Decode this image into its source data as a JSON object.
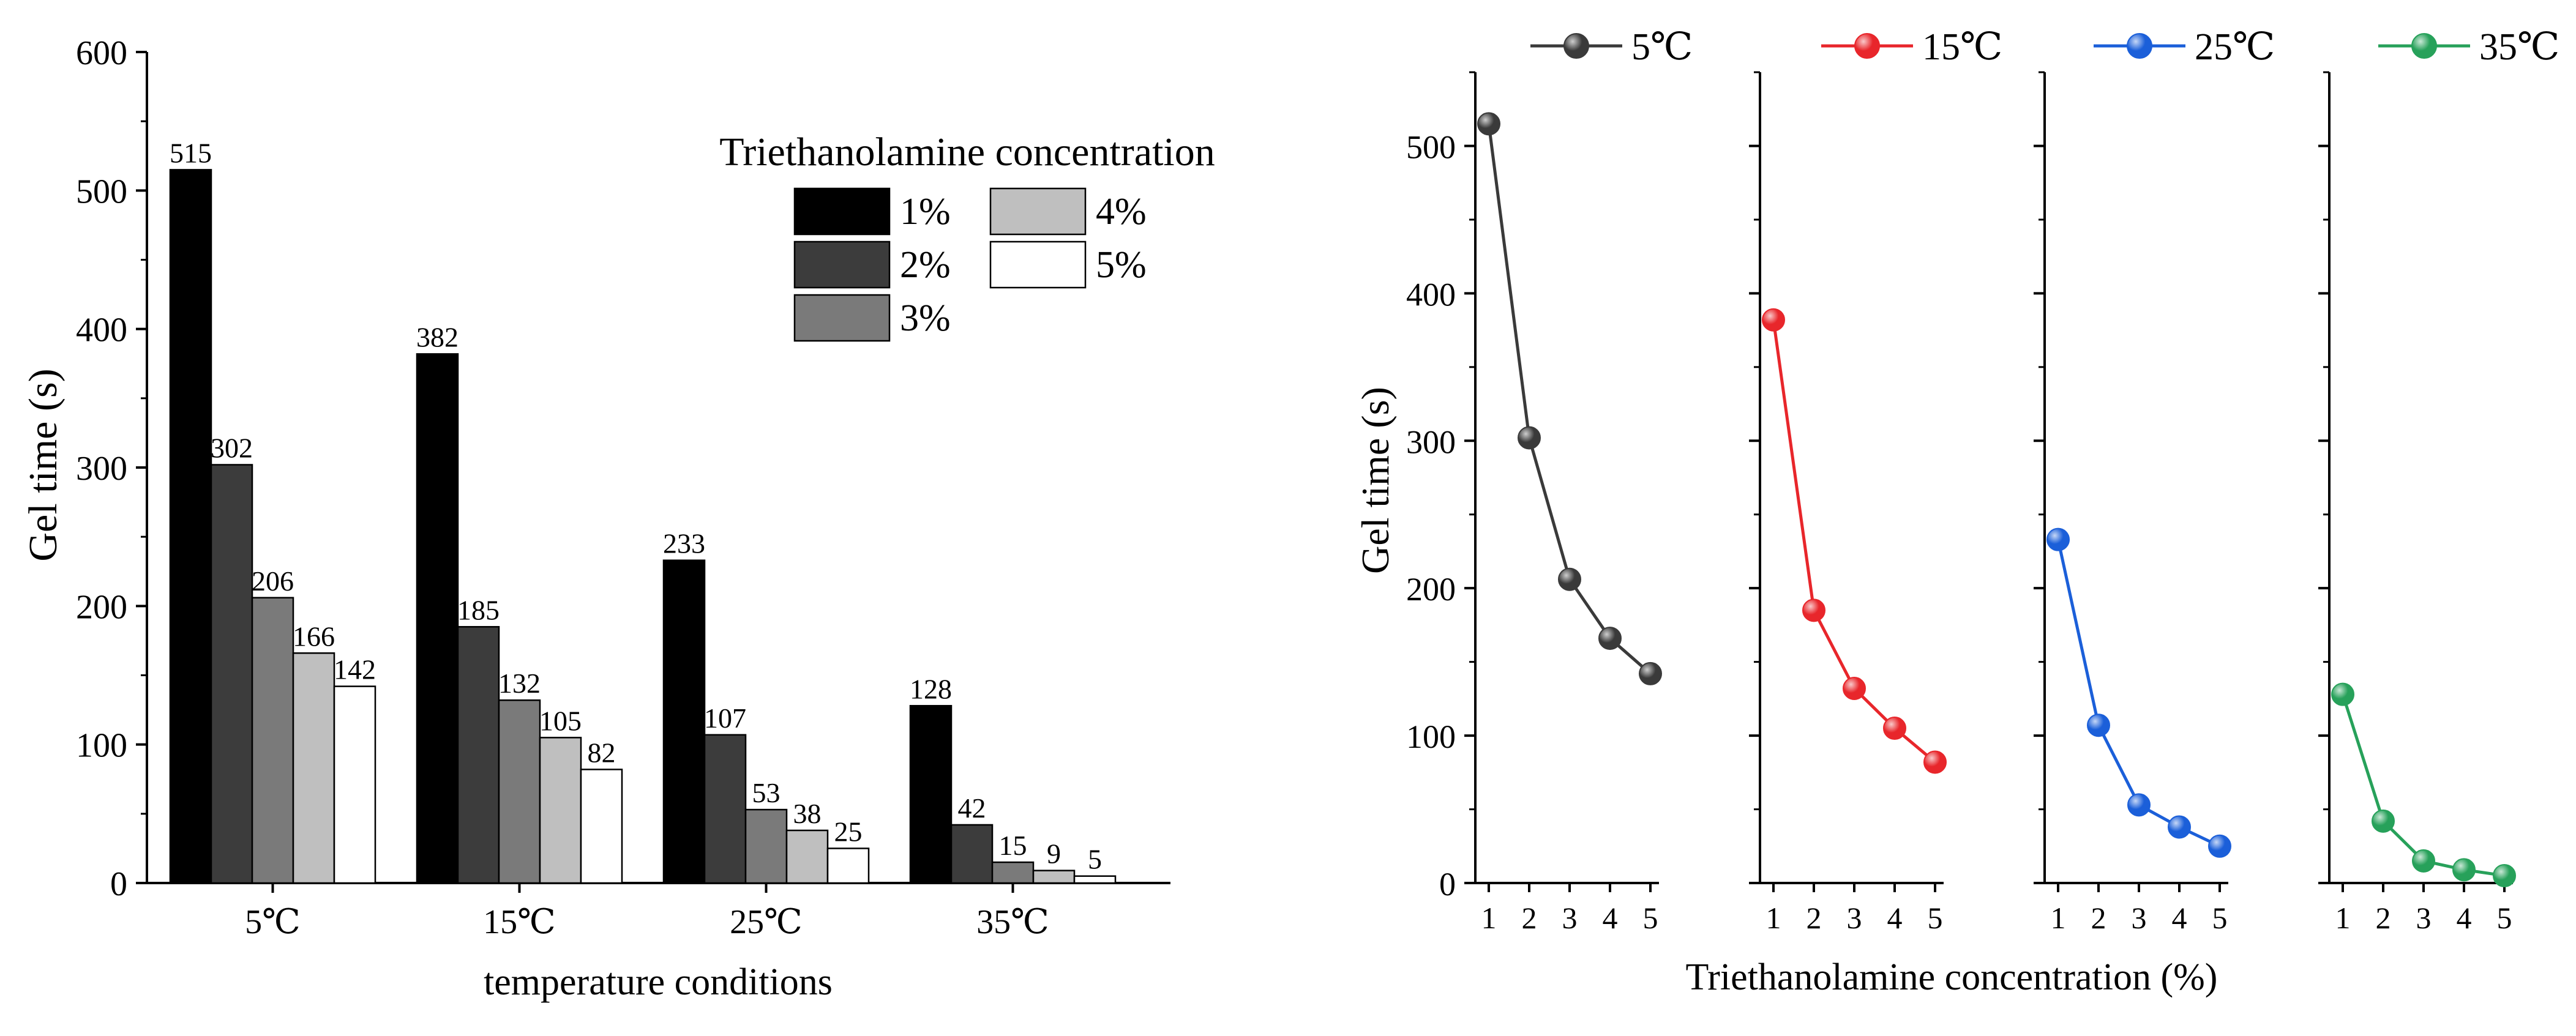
{
  "chart_data": [
    {
      "type": "bar",
      "title": "",
      "xlabel": "temperature conditions",
      "ylabel": "Gel time (s)",
      "ylim": [
        0,
        600
      ],
      "yticks": [
        0,
        100,
        200,
        300,
        400,
        500,
        600
      ],
      "categories": [
        "5℃",
        "15℃",
        "25℃",
        "35℃"
      ],
      "legend_title": "Triethanolamine concentration",
      "series": [
        {
          "name": "1%",
          "color": "#000000",
          "values": [
            515,
            382,
            233,
            128
          ]
        },
        {
          "name": "2%",
          "color": "#3c3c3c",
          "values": [
            302,
            185,
            107,
            42
          ]
        },
        {
          "name": "3%",
          "color": "#7a7a7a",
          "values": [
            206,
            132,
            53,
            15
          ]
        },
        {
          "name": "4%",
          "color": "#bfbfbf",
          "values": [
            166,
            105,
            38,
            9
          ]
        },
        {
          "name": "5%",
          "color": "#ffffff",
          "values": [
            142,
            82,
            25,
            5
          ]
        }
      ]
    },
    {
      "type": "line",
      "title": "",
      "xlabel": "Triethanolamine concentration (%)",
      "ylabel": "Gel time (s)",
      "ylim": [
        0,
        550
      ],
      "yticks": [
        0,
        100,
        200,
        300,
        400,
        500
      ],
      "x": [
        1,
        2,
        3,
        4,
        5
      ],
      "series": [
        {
          "name": "5℃",
          "color": "#3a3a3a",
          "values": [
            515,
            302,
            206,
            166,
            142
          ]
        },
        {
          "name": "15℃",
          "color": "#e8262b",
          "values": [
            382,
            185,
            132,
            105,
            82
          ]
        },
        {
          "name": "25℃",
          "color": "#1b5fd9",
          "values": [
            233,
            107,
            53,
            38,
            25
          ]
        },
        {
          "name": "35℃",
          "color": "#27a15a",
          "values": [
            128,
            42,
            15,
            9,
            5
          ]
        }
      ]
    }
  ]
}
